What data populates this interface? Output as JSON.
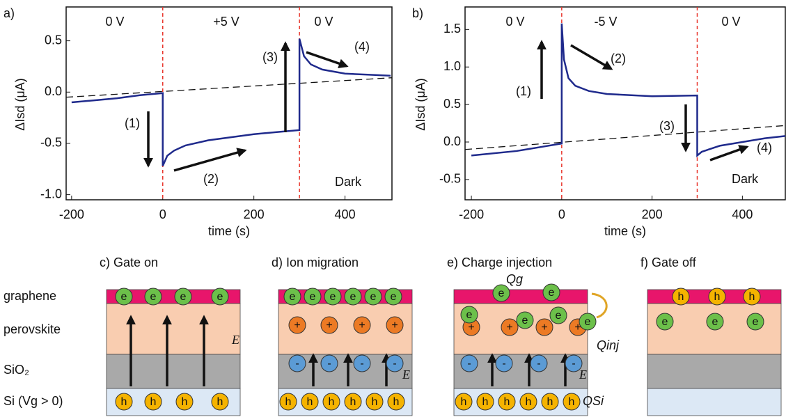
{
  "chart_data": [
    {
      "type": "line",
      "panel_label": "a)",
      "y_label": "ΔIsd (μA)",
      "x_label": "time (s)",
      "x": [
        -200,
        -150,
        -100,
        -50,
        0,
        0,
        10,
        25,
        50,
        100,
        150,
        200,
        250,
        300,
        300,
        310,
        325,
        350,
        400,
        450,
        500
      ],
      "values": [
        -0.1,
        -0.08,
        -0.06,
        -0.03,
        -0.01,
        -0.72,
        -0.62,
        -0.57,
        -0.52,
        -0.47,
        -0.44,
        -0.41,
        -0.39,
        -0.37,
        0.52,
        0.35,
        0.27,
        0.22,
        0.18,
        0.17,
        0.16
      ],
      "color": "#1f2a8c",
      "baseline": {
        "x": [
          -212,
          503
        ],
        "values": [
          -0.05,
          0.14
        ],
        "color": "#111"
      },
      "vlines": [
        0,
        300
      ],
      "vline_color": "#e8352b",
      "xlim": [
        -212,
        503
      ],
      "ylim": [
        -1.05,
        0.83
      ],
      "xticks": [
        -200,
        0,
        200,
        400
      ],
      "yticks": [
        {
          "value": -1,
          "label": "-1.0"
        },
        -0.5,
        {
          "value": 0,
          "label": "0.0"
        },
        0.5
      ],
      "annotations": [
        "0 V",
        "+5 V",
        "0 V",
        "(1)",
        "(2)",
        "(3)",
        "(4)",
        "Dark"
      ]
    },
    {
      "type": "line",
      "panel_label": "b)",
      "y_label": "ΔIsd (μA)",
      "x_label": "time (s)",
      "x": [
        -200,
        -100,
        -50,
        0,
        0,
        5,
        15,
        30,
        60,
        100,
        200,
        300,
        300,
        310,
        350,
        400,
        450,
        495
      ],
      "values": [
        -0.18,
        -0.12,
        -0.07,
        -0.02,
        1.58,
        1.1,
        0.85,
        0.75,
        0.68,
        0.64,
        0.61,
        0.62,
        -0.18,
        -0.13,
        -0.05,
        0.0,
        0.05,
        0.08
      ],
      "color": "#1f2a8c",
      "baseline": {
        "x": [
          -214,
          495
        ],
        "values": [
          -0.1,
          0.22
        ],
        "color": "#111"
      },
      "vlines": [
        0,
        300
      ],
      "vline_color": "#e8352b",
      "xlim": [
        -214,
        495
      ],
      "ylim": [
        -0.77,
        1.8
      ],
      "xticks": [
        -200,
        0,
        200,
        400
      ],
      "yticks": [
        -0.5,
        {
          "value": 0,
          "label": "0.0"
        },
        0.5,
        {
          "value": 1,
          "label": "1.0"
        },
        1.5
      ],
      "annotations": [
        "0 V",
        "-5 V",
        "0 V",
        "(1)",
        "(2)",
        "(3)",
        "(4)",
        "Dark"
      ]
    }
  ],
  "diagram": {
    "layers": [
      "graphene",
      "perovskite",
      "SiO₂",
      "Si (Vg > 0)"
    ],
    "panels": [
      {
        "title": "c) Gate on",
        "particles": [
          "e",
          "e",
          "e",
          "e",
          "h",
          "h",
          "h",
          "h"
        ],
        "field": "E⃗"
      },
      {
        "title": "d) Ion migration",
        "particles": [
          "e",
          "e",
          "e",
          "e",
          "e",
          "e",
          "+",
          "+",
          "+",
          "+",
          "-",
          "-",
          "-",
          "-",
          "h",
          "h",
          "h",
          "h",
          "h",
          "h"
        ],
        "field": "E⃗"
      },
      {
        "title": "e) Charge injection",
        "particles": [
          "+",
          "+",
          "+",
          "+",
          "e",
          "e",
          "e",
          "e",
          "e",
          "e",
          "-",
          "-",
          "-",
          "-",
          "h",
          "h",
          "h",
          "h",
          "h",
          "h"
        ],
        "field": "E⃗",
        "charges": [
          "Qg",
          "Qinj",
          "QSi"
        ]
      },
      {
        "title": "f) Gate off",
        "particles": [
          "h",
          "h",
          "h",
          "e",
          "e",
          "e"
        ]
      }
    ]
  }
}
